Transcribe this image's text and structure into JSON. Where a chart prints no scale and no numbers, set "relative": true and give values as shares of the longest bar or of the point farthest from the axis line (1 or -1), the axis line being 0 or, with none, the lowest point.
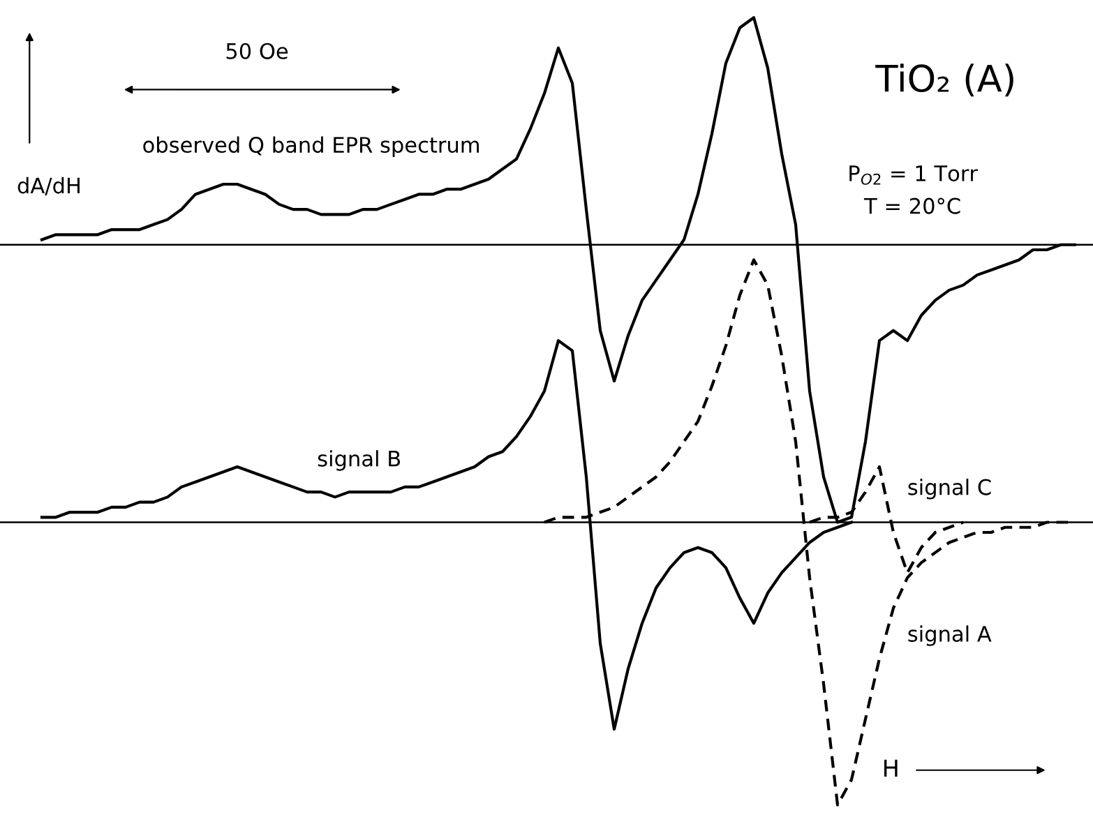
{
  "chart_data": {
    "type": "line",
    "title": "TiO₂ (A)",
    "xlabel": "H",
    "ylabel": "dA/dH",
    "relative": true,
    "legend": false,
    "marker": "none",
    "annotations": [
      "50 Oe",
      "P$_{O2}$ = 1 Torr",
      "T = 20°C"
    ],
    "ref_lines": [
      {
        "axis": "y",
        "value": 0.55,
        "color": "#000000",
        "line_style": "solid"
      }
    ],
    "categories": [
      null,
      null,
      null,
      null,
      null,
      null,
      null,
      null,
      null,
      null,
      null,
      null,
      null,
      null,
      null,
      null,
      null,
      null,
      null,
      null,
      null,
      null,
      null,
      null,
      null,
      null,
      null,
      null,
      null,
      null,
      null,
      null,
      null,
      null,
      null,
      null,
      null,
      null,
      null,
      null,
      null,
      null,
      null,
      null,
      null,
      null,
      null,
      null,
      null,
      null,
      null,
      null,
      null,
      null,
      null,
      null,
      null,
      null,
      null,
      null,
      null,
      null,
      null,
      null,
      null,
      null,
      null,
      null,
      null,
      null,
      null,
      null,
      null,
      null,
      null
    ],
    "series": [
      {
        "name": "observed Q band EPR spectrum",
        "color": "#000000",
        "line_style": "solid",
        "values": [
          0.56,
          0.57,
          0.57,
          0.57,
          0.57,
          0.58,
          0.58,
          0.58,
          0.59,
          0.6,
          0.62,
          0.65,
          0.66,
          0.67,
          0.67,
          0.66,
          0.65,
          0.63,
          0.62,
          0.62,
          0.61,
          0.61,
          0.61,
          0.62,
          0.62,
          0.63,
          0.64,
          0.65,
          0.65,
          0.66,
          0.66,
          0.67,
          0.68,
          0.7,
          0.72,
          0.78,
          0.85,
          0.94,
          0.87,
          0.62,
          0.38,
          0.28,
          0.37,
          0.44,
          0.48,
          0.52,
          0.56,
          0.65,
          0.77,
          0.91,
          0.98,
          1.0,
          0.9,
          0.73,
          0.59,
          0.26,
          0.09,
          0.0,
          0.01,
          0.16,
          0.36,
          0.38,
          0.36,
          0.41,
          0.44,
          0.46,
          0.47,
          0.49,
          0.5,
          0.51,
          0.52,
          0.54,
          0.54,
          0.55,
          0.55
        ]
      },
      {
        "name": "signal B",
        "color": "#000000",
        "line_style": "solid",
        "values": [
          0.01,
          0.01,
          0.02,
          0.02,
          0.02,
          0.03,
          0.03,
          0.04,
          0.04,
          0.05,
          0.07,
          0.08,
          0.09,
          0.1,
          0.11,
          0.1,
          0.09,
          0.08,
          0.07,
          0.06,
          0.06,
          0.05,
          0.06,
          0.06,
          0.06,
          0.06,
          0.07,
          0.07,
          0.08,
          0.09,
          0.1,
          0.11,
          0.13,
          0.14,
          0.17,
          0.21,
          0.26,
          0.36,
          0.34,
          0.09,
          -0.24,
          -0.41,
          -0.29,
          -0.2,
          -0.13,
          -0.09,
          -0.06,
          -0.05,
          -0.06,
          -0.09,
          -0.15,
          -0.2,
          -0.14,
          -0.1,
          -0.07,
          -0.04,
          -0.02,
          -0.01,
          0.0,
          null,
          null,
          null,
          null,
          null,
          null,
          null,
          null,
          null,
          null,
          null,
          null,
          null,
          null,
          null,
          null
        ]
      },
      {
        "name": "signal A",
        "color": "#000000",
        "line_style": "dashed",
        "values": [
          null,
          null,
          null,
          null,
          null,
          null,
          null,
          null,
          null,
          null,
          null,
          null,
          null,
          null,
          null,
          null,
          null,
          null,
          null,
          null,
          null,
          null,
          null,
          null,
          null,
          null,
          null,
          null,
          null,
          null,
          null,
          null,
          null,
          null,
          null,
          null,
          0.0,
          0.01,
          0.01,
          0.01,
          0.02,
          0.03,
          0.05,
          0.07,
          0.09,
          0.12,
          0.16,
          0.2,
          0.27,
          0.35,
          0.45,
          0.52,
          0.47,
          0.33,
          0.16,
          -0.11,
          -0.32,
          -0.56,
          -0.51,
          -0.39,
          -0.27,
          -0.17,
          -0.11,
          -0.08,
          -0.06,
          -0.04,
          -0.03,
          -0.02,
          -0.02,
          -0.01,
          -0.01,
          -0.01,
          0.0,
          0.0,
          0.0
        ]
      },
      {
        "name": "signal C",
        "color": "#000000",
        "line_style": "dashed",
        "values": [
          null,
          null,
          null,
          null,
          null,
          null,
          null,
          null,
          null,
          null,
          null,
          null,
          null,
          null,
          null,
          null,
          null,
          null,
          null,
          null,
          null,
          null,
          null,
          null,
          null,
          null,
          null,
          null,
          null,
          null,
          null,
          null,
          null,
          null,
          null,
          null,
          null,
          null,
          null,
          null,
          null,
          null,
          null,
          null,
          null,
          null,
          null,
          null,
          null,
          null,
          null,
          null,
          null,
          null,
          null,
          0.0,
          0.01,
          0.01,
          0.02,
          0.06,
          0.11,
          -0.02,
          -0.1,
          -0.05,
          -0.02,
          -0.01,
          0.0,
          null,
          null,
          null,
          null,
          null,
          null,
          null,
          null
        ]
      }
    ]
  }
}
